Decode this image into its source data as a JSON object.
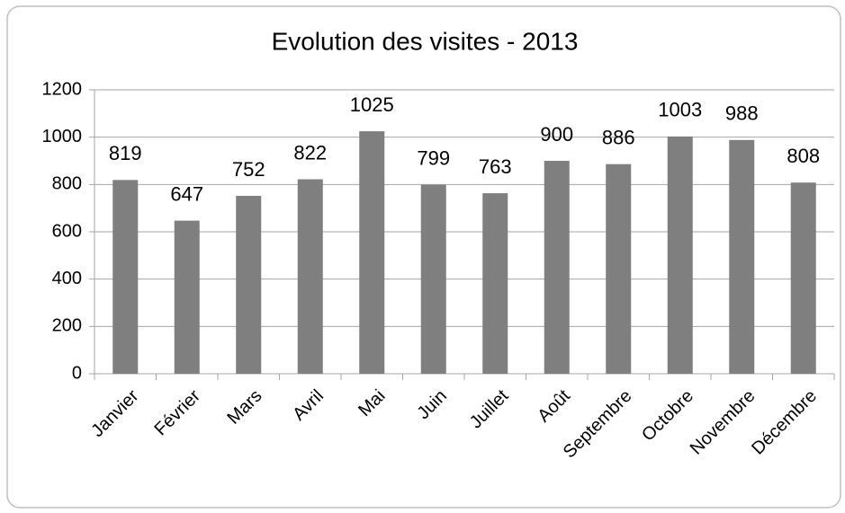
{
  "chart_data": {
    "type": "bar",
    "title": "Evolution des visites - 2013",
    "categories": [
      "Janvier",
      "Février",
      "Mars",
      "Avril",
      "Mai",
      "Juin",
      "Juillet",
      "Août",
      "Septembre",
      "Octobre",
      "Novembre",
      "Décembre"
    ],
    "values": [
      819,
      647,
      752,
      822,
      1025,
      799,
      763,
      900,
      886,
      1003,
      988,
      808
    ],
    "color": "#7f7f7f",
    "ylim": [
      0,
      1200
    ],
    "yticks": [
      0,
      200,
      400,
      600,
      800,
      1000,
      1200
    ],
    "grid": true
  }
}
